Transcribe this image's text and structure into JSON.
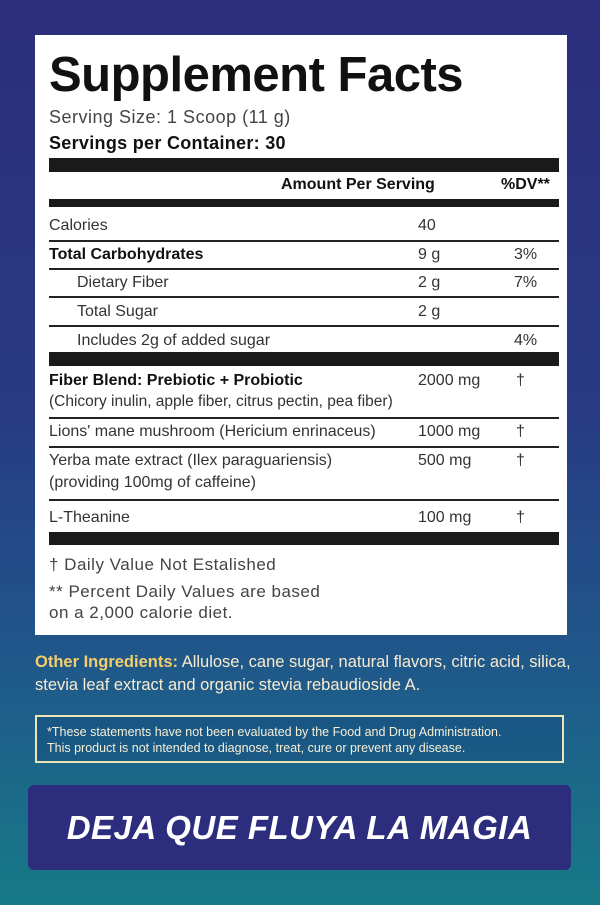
{
  "title": "Supplement Facts",
  "serving_size": "Serving Size: 1 Scoop (11 g)",
  "servings_per_container": "Servings per Container: 30",
  "header": {
    "amount": "Amount Per Serving",
    "dv": "%DV**"
  },
  "rows": [
    {
      "name": "Calories",
      "amount": "40",
      "dv": ""
    },
    {
      "name": "Total Carbohydrates",
      "amount": "9 g",
      "dv": "3%"
    },
    {
      "name": "Dietary Fiber",
      "amount": "2 g",
      "dv": "7%"
    },
    {
      "name": "Total Sugar",
      "amount": "2 g",
      "dv": ""
    },
    {
      "name": "Includes 2g of added sugar",
      "amount": "",
      "dv": "4%"
    }
  ],
  "ingredients": [
    {
      "name": "Fiber Blend: Prebiotic + Probiotic",
      "sub": "(Chicory inulin, apple fiber, citrus pectin, pea fiber)",
      "amount": "2000 mg",
      "dv": "†"
    },
    {
      "name": "Lions' mane mushroom (Hericium enrinaceus)",
      "amount": "1000 mg",
      "dv": "†"
    },
    {
      "name": "Yerba mate extract (Ilex paraguariensis)",
      "sub": "(providing 100mg of caffeine)",
      "amount": "500 mg",
      "dv": "†"
    },
    {
      "name": "L-Theanine",
      "amount": "100 mg",
      "dv": "†"
    }
  ],
  "footnotes": [
    "† Daily Value Not Estalished",
    "** Percent Daily Values are based",
    "on a 2,000 calorie diet."
  ],
  "other_ingredients": {
    "label": "Other Ingredients:",
    "text": " Allulose, cane sugar, natural flavors, citric acid, silica, stevia leaf extract and organic stevia rebaudioside A."
  },
  "disclaimer": [
    "*These statements have not been evaluated by the Food and Drug Administration.",
    "This product is not intended to diagnose, treat, cure or prevent any disease."
  ],
  "banner": "DEJA QUE FLUYA LA MAGIA"
}
